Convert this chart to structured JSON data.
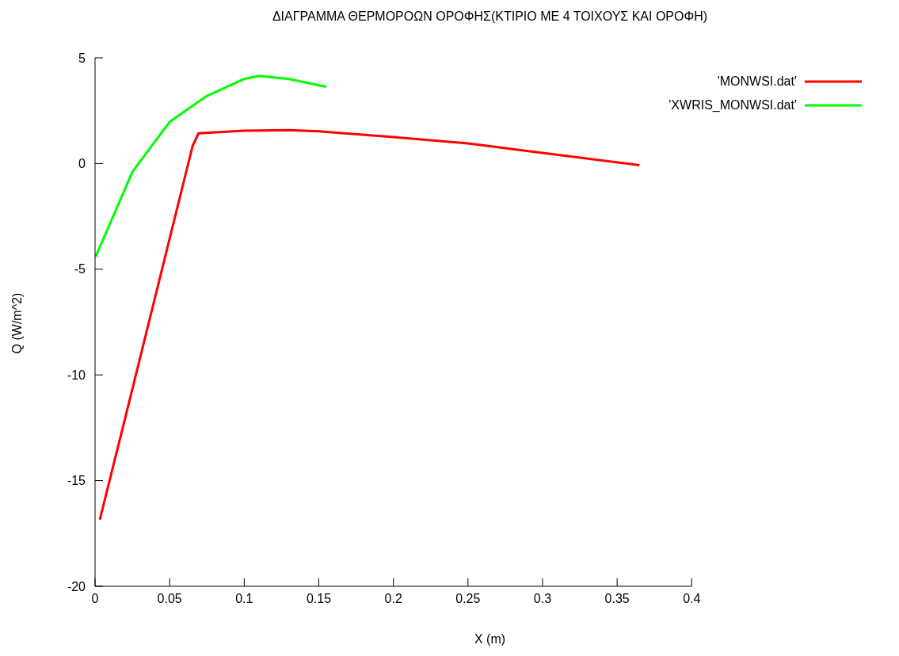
{
  "chart_data": {
    "type": "line",
    "title": "ΔΙΑΓΡΑΜΜΑ ΘΕΡΜΟΡΟΩΝ ΟΡΟΦΗΣ(ΚΤΙΡΙΟ ΜΕ 4 ΤΟΙΧΟΥΣ ΚΑΙ ΟΡΟΦΗ)",
    "xlabel": "X (m)",
    "ylabel": "Q (W/m^2)",
    "series": [
      {
        "name": "'MONWSI.dat'",
        "color": "#ff0000",
        "x": [
          0.0032,
          0.02,
          0.04,
          0.0654,
          0.0694,
          0.1,
          0.13,
          0.15,
          0.2,
          0.25,
          0.3,
          0.365
        ],
        "values": [
          -16.85,
          -12.1,
          -6.4,
          0.83,
          1.43,
          1.55,
          1.58,
          1.52,
          1.25,
          0.95,
          0.5,
          -0.08
        ]
      },
      {
        "name": "'XWRIS_MONWSI.dat'",
        "color": "#00ff00",
        "x": [
          0.0004,
          0.01,
          0.025,
          0.05,
          0.075,
          0.1,
          0.11,
          0.13,
          0.155
        ],
        "values": [
          -4.41,
          -2.85,
          -0.39,
          1.97,
          3.2,
          4.0,
          4.15,
          4.0,
          3.63
        ]
      }
    ],
    "xlim": [
      0,
      0.4
    ],
    "xticks": [
      0,
      0.05,
      0.1,
      0.15,
      0.2,
      0.25,
      0.3,
      0.35,
      0.4
    ],
    "ylim": [
      -20,
      5
    ],
    "yticks": [
      -20,
      -15,
      -10,
      -5,
      0,
      5
    ],
    "grid": false,
    "legend": "top right",
    "marker": "none",
    "line_style": "solid"
  }
}
